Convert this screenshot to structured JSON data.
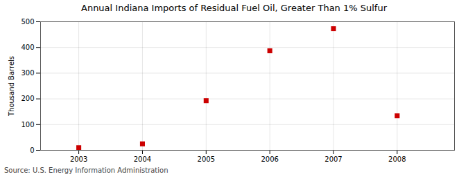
{
  "chart_data": {
    "type": "scatter",
    "title": "Annual Indiana Imports of Residual Fuel Oil, Greater Than 1% Sulfur",
    "ylabel": "Thousand Barrels",
    "source": "Source: U.S. Energy Information Administration",
    "x": [
      2003,
      2004,
      2005,
      2006,
      2007,
      2008
    ],
    "values": [
      10,
      25,
      193,
      387,
      473,
      134
    ],
    "color": "#cc0000",
    "marker": "square",
    "xlim": [
      2002.4,
      2008.9
    ],
    "xticks": [
      2003,
      2004,
      2005,
      2006,
      2007,
      2008
    ],
    "ylim": [
      0,
      500
    ],
    "yticks": [
      0,
      100,
      200,
      300,
      400,
      500
    ],
    "grid": true
  }
}
